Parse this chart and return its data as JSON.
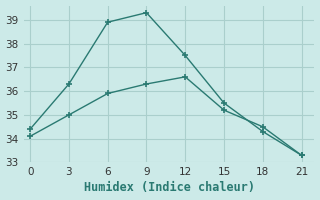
{
  "line1_x": [
    0,
    3,
    6,
    9,
    12,
    15,
    18,
    21
  ],
  "line1_y": [
    34.4,
    36.3,
    38.9,
    39.3,
    37.5,
    35.5,
    34.3,
    33.3
  ],
  "line2_x": [
    0,
    3,
    6,
    9,
    12,
    15,
    18,
    21
  ],
  "line2_y": [
    34.1,
    35.0,
    35.9,
    36.3,
    36.6,
    35.2,
    34.5,
    33.3
  ],
  "line_color": "#2a7a72",
  "bg_color": "#cceae8",
  "grid_color": "#aacfcc",
  "xlabel": "Humidex (Indice chaleur)",
  "xlim": [
    -0.5,
    22
  ],
  "ylim": [
    33,
    39.6
  ],
  "xticks": [
    0,
    3,
    6,
    9,
    12,
    15,
    18,
    21
  ],
  "yticks": [
    33,
    34,
    35,
    36,
    37,
    38,
    39
  ],
  "xlabel_fontsize": 8.5,
  "tick_fontsize": 7.5
}
